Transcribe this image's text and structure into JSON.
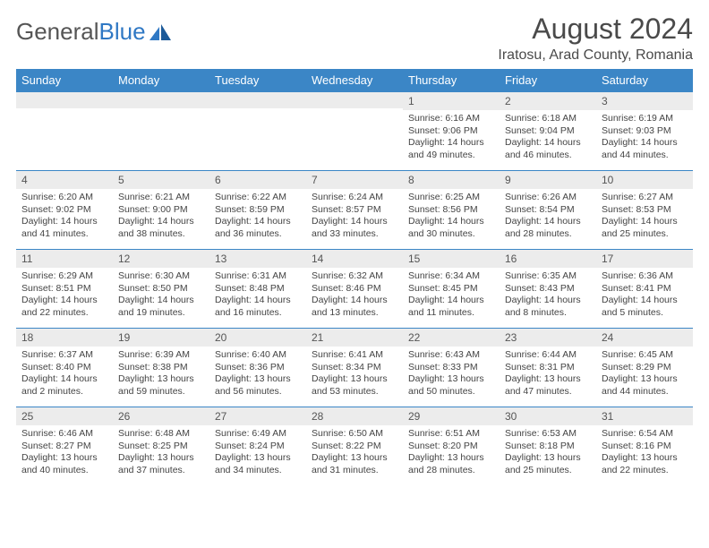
{
  "logo": {
    "text_gray": "General",
    "text_blue": "Blue"
  },
  "title": "August 2024",
  "location": "Iratosu, Arad County, Romania",
  "colors": {
    "header_blue": "#3b86c6",
    "daynum_bg": "#ececec",
    "logo_blue": "#2f78c4",
    "text": "#444444"
  },
  "weekdays": [
    "Sunday",
    "Monday",
    "Tuesday",
    "Wednesday",
    "Thursday",
    "Friday",
    "Saturday"
  ],
  "weeks": [
    [
      {
        "n": "",
        "sr": "",
        "ss": "",
        "dl": ""
      },
      {
        "n": "",
        "sr": "",
        "ss": "",
        "dl": ""
      },
      {
        "n": "",
        "sr": "",
        "ss": "",
        "dl": ""
      },
      {
        "n": "",
        "sr": "",
        "ss": "",
        "dl": ""
      },
      {
        "n": "1",
        "sr": "Sunrise: 6:16 AM",
        "ss": "Sunset: 9:06 PM",
        "dl": "Daylight: 14 hours and 49 minutes."
      },
      {
        "n": "2",
        "sr": "Sunrise: 6:18 AM",
        "ss": "Sunset: 9:04 PM",
        "dl": "Daylight: 14 hours and 46 minutes."
      },
      {
        "n": "3",
        "sr": "Sunrise: 6:19 AM",
        "ss": "Sunset: 9:03 PM",
        "dl": "Daylight: 14 hours and 44 minutes."
      }
    ],
    [
      {
        "n": "4",
        "sr": "Sunrise: 6:20 AM",
        "ss": "Sunset: 9:02 PM",
        "dl": "Daylight: 14 hours and 41 minutes."
      },
      {
        "n": "5",
        "sr": "Sunrise: 6:21 AM",
        "ss": "Sunset: 9:00 PM",
        "dl": "Daylight: 14 hours and 38 minutes."
      },
      {
        "n": "6",
        "sr": "Sunrise: 6:22 AM",
        "ss": "Sunset: 8:59 PM",
        "dl": "Daylight: 14 hours and 36 minutes."
      },
      {
        "n": "7",
        "sr": "Sunrise: 6:24 AM",
        "ss": "Sunset: 8:57 PM",
        "dl": "Daylight: 14 hours and 33 minutes."
      },
      {
        "n": "8",
        "sr": "Sunrise: 6:25 AM",
        "ss": "Sunset: 8:56 PM",
        "dl": "Daylight: 14 hours and 30 minutes."
      },
      {
        "n": "9",
        "sr": "Sunrise: 6:26 AM",
        "ss": "Sunset: 8:54 PM",
        "dl": "Daylight: 14 hours and 28 minutes."
      },
      {
        "n": "10",
        "sr": "Sunrise: 6:27 AM",
        "ss": "Sunset: 8:53 PM",
        "dl": "Daylight: 14 hours and 25 minutes."
      }
    ],
    [
      {
        "n": "11",
        "sr": "Sunrise: 6:29 AM",
        "ss": "Sunset: 8:51 PM",
        "dl": "Daylight: 14 hours and 22 minutes."
      },
      {
        "n": "12",
        "sr": "Sunrise: 6:30 AM",
        "ss": "Sunset: 8:50 PM",
        "dl": "Daylight: 14 hours and 19 minutes."
      },
      {
        "n": "13",
        "sr": "Sunrise: 6:31 AM",
        "ss": "Sunset: 8:48 PM",
        "dl": "Daylight: 14 hours and 16 minutes."
      },
      {
        "n": "14",
        "sr": "Sunrise: 6:32 AM",
        "ss": "Sunset: 8:46 PM",
        "dl": "Daylight: 14 hours and 13 minutes."
      },
      {
        "n": "15",
        "sr": "Sunrise: 6:34 AM",
        "ss": "Sunset: 8:45 PM",
        "dl": "Daylight: 14 hours and 11 minutes."
      },
      {
        "n": "16",
        "sr": "Sunrise: 6:35 AM",
        "ss": "Sunset: 8:43 PM",
        "dl": "Daylight: 14 hours and 8 minutes."
      },
      {
        "n": "17",
        "sr": "Sunrise: 6:36 AM",
        "ss": "Sunset: 8:41 PM",
        "dl": "Daylight: 14 hours and 5 minutes."
      }
    ],
    [
      {
        "n": "18",
        "sr": "Sunrise: 6:37 AM",
        "ss": "Sunset: 8:40 PM",
        "dl": "Daylight: 14 hours and 2 minutes."
      },
      {
        "n": "19",
        "sr": "Sunrise: 6:39 AM",
        "ss": "Sunset: 8:38 PM",
        "dl": "Daylight: 13 hours and 59 minutes."
      },
      {
        "n": "20",
        "sr": "Sunrise: 6:40 AM",
        "ss": "Sunset: 8:36 PM",
        "dl": "Daylight: 13 hours and 56 minutes."
      },
      {
        "n": "21",
        "sr": "Sunrise: 6:41 AM",
        "ss": "Sunset: 8:34 PM",
        "dl": "Daylight: 13 hours and 53 minutes."
      },
      {
        "n": "22",
        "sr": "Sunrise: 6:43 AM",
        "ss": "Sunset: 8:33 PM",
        "dl": "Daylight: 13 hours and 50 minutes."
      },
      {
        "n": "23",
        "sr": "Sunrise: 6:44 AM",
        "ss": "Sunset: 8:31 PM",
        "dl": "Daylight: 13 hours and 47 minutes."
      },
      {
        "n": "24",
        "sr": "Sunrise: 6:45 AM",
        "ss": "Sunset: 8:29 PM",
        "dl": "Daylight: 13 hours and 44 minutes."
      }
    ],
    [
      {
        "n": "25",
        "sr": "Sunrise: 6:46 AM",
        "ss": "Sunset: 8:27 PM",
        "dl": "Daylight: 13 hours and 40 minutes."
      },
      {
        "n": "26",
        "sr": "Sunrise: 6:48 AM",
        "ss": "Sunset: 8:25 PM",
        "dl": "Daylight: 13 hours and 37 minutes."
      },
      {
        "n": "27",
        "sr": "Sunrise: 6:49 AM",
        "ss": "Sunset: 8:24 PM",
        "dl": "Daylight: 13 hours and 34 minutes."
      },
      {
        "n": "28",
        "sr": "Sunrise: 6:50 AM",
        "ss": "Sunset: 8:22 PM",
        "dl": "Daylight: 13 hours and 31 minutes."
      },
      {
        "n": "29",
        "sr": "Sunrise: 6:51 AM",
        "ss": "Sunset: 8:20 PM",
        "dl": "Daylight: 13 hours and 28 minutes."
      },
      {
        "n": "30",
        "sr": "Sunrise: 6:53 AM",
        "ss": "Sunset: 8:18 PM",
        "dl": "Daylight: 13 hours and 25 minutes."
      },
      {
        "n": "31",
        "sr": "Sunrise: 6:54 AM",
        "ss": "Sunset: 8:16 PM",
        "dl": "Daylight: 13 hours and 22 minutes."
      }
    ]
  ]
}
